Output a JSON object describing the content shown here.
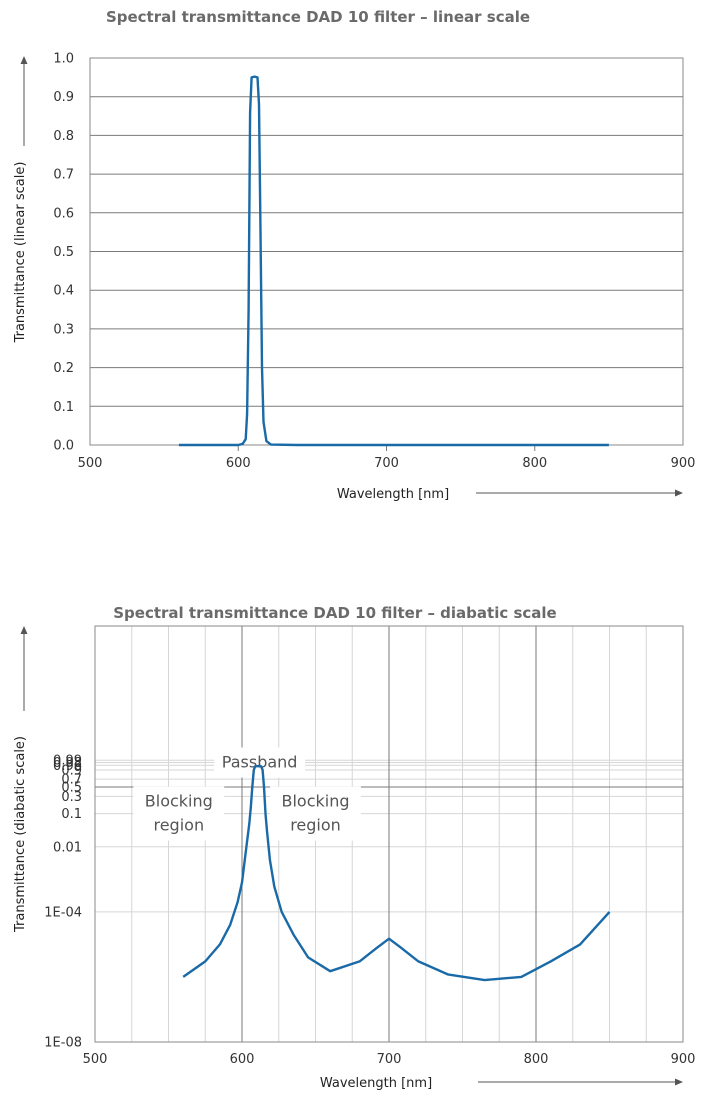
{
  "chart_data": [
    {
      "type": "line",
      "title": "Spectral transmittance DAD 10 filter – linear scale",
      "xlabel": "Wavelength [nm]",
      "ylabel": "Transmittance (linear scale)",
      "xlim": [
        500,
        900
      ],
      "ylim": [
        0,
        1.0
      ],
      "x_ticks": [
        "500",
        "600",
        "700",
        "800",
        "900"
      ],
      "y_ticks": [
        "0.0",
        "0.1",
        "0.2",
        "0.3",
        "0.4",
        "0.5",
        "0.6",
        "0.7",
        "0.8",
        "0.9",
        "1.0"
      ],
      "grid": "horizontal",
      "line_color": "#1a6aa8",
      "series": [
        {
          "x": [
            560,
            600,
            603,
            605,
            606,
            607,
            608,
            609,
            611,
            613,
            614,
            615,
            616,
            617,
            619,
            622,
            640,
            700,
            800,
            850
          ],
          "y": [
            0.0,
            0.0,
            0.003,
            0.015,
            0.08,
            0.35,
            0.86,
            0.95,
            0.952,
            0.95,
            0.88,
            0.55,
            0.2,
            0.06,
            0.01,
            0.001,
            0.0,
            0.0,
            0.0,
            0.0
          ]
        }
      ]
    },
    {
      "type": "line",
      "title": "Spectral transmittance DAD 10 filter – diabatic scale",
      "xlabel": "Wavelength [nm]",
      "ylabel": "Transmittance (diabatic scale)",
      "y_scale": "diabatic",
      "xlim": [
        500,
        900
      ],
      "x_ticks": [
        "500",
        "600",
        "700",
        "800",
        "900"
      ],
      "y_ticks": [
        "1E-08",
        "1E-04",
        "0.01",
        "0.1",
        "0.3",
        "0.5",
        "0.7",
        "0.9",
        "0.96",
        "0.98",
        "0.99"
      ],
      "grid": "both",
      "line_color": "#1a6aa8",
      "annotations": [
        {
          "lines": [
            "Passband"
          ],
          "x": 612,
          "y": 0.98
        },
        {
          "lines": [
            "Blocking",
            "region"
          ],
          "x": 557,
          "y": 0.1
        },
        {
          "lines": [
            "Blocking",
            "region"
          ],
          "x": 650,
          "y": 0.1
        }
      ],
      "series": [
        {
          "x": [
            560,
            575,
            585,
            592,
            597,
            600,
            603,
            605,
            606,
            607,
            608,
            609,
            611,
            613,
            614,
            615,
            616,
            617,
            619,
            622,
            627,
            635,
            645,
            660,
            680,
            692,
            700,
            708,
            720,
            740,
            765,
            790,
            810,
            830,
            850
          ],
          "y": [
            "1E-06",
            "3E-06",
            "1E-05",
            "4E-05",
            "2E-04",
            "8E-04",
            "0.01",
            "0.05",
            "0.15",
            "0.5",
            "0.9",
            "0.95",
            "0.952",
            "0.95",
            "0.9",
            "0.5",
            "0.1",
            "0.03",
            "0.004",
            "6E-04",
            "1E-04",
            "2E-05",
            "4E-06",
            "1.5E-06",
            "3E-06",
            "8E-06",
            "1.5E-05",
            "8E-06",
            "3E-06",
            "1.2E-06",
            "8E-07",
            "1E-06",
            "3E-06",
            "1E-05",
            "1E-04"
          ]
        }
      ]
    }
  ]
}
